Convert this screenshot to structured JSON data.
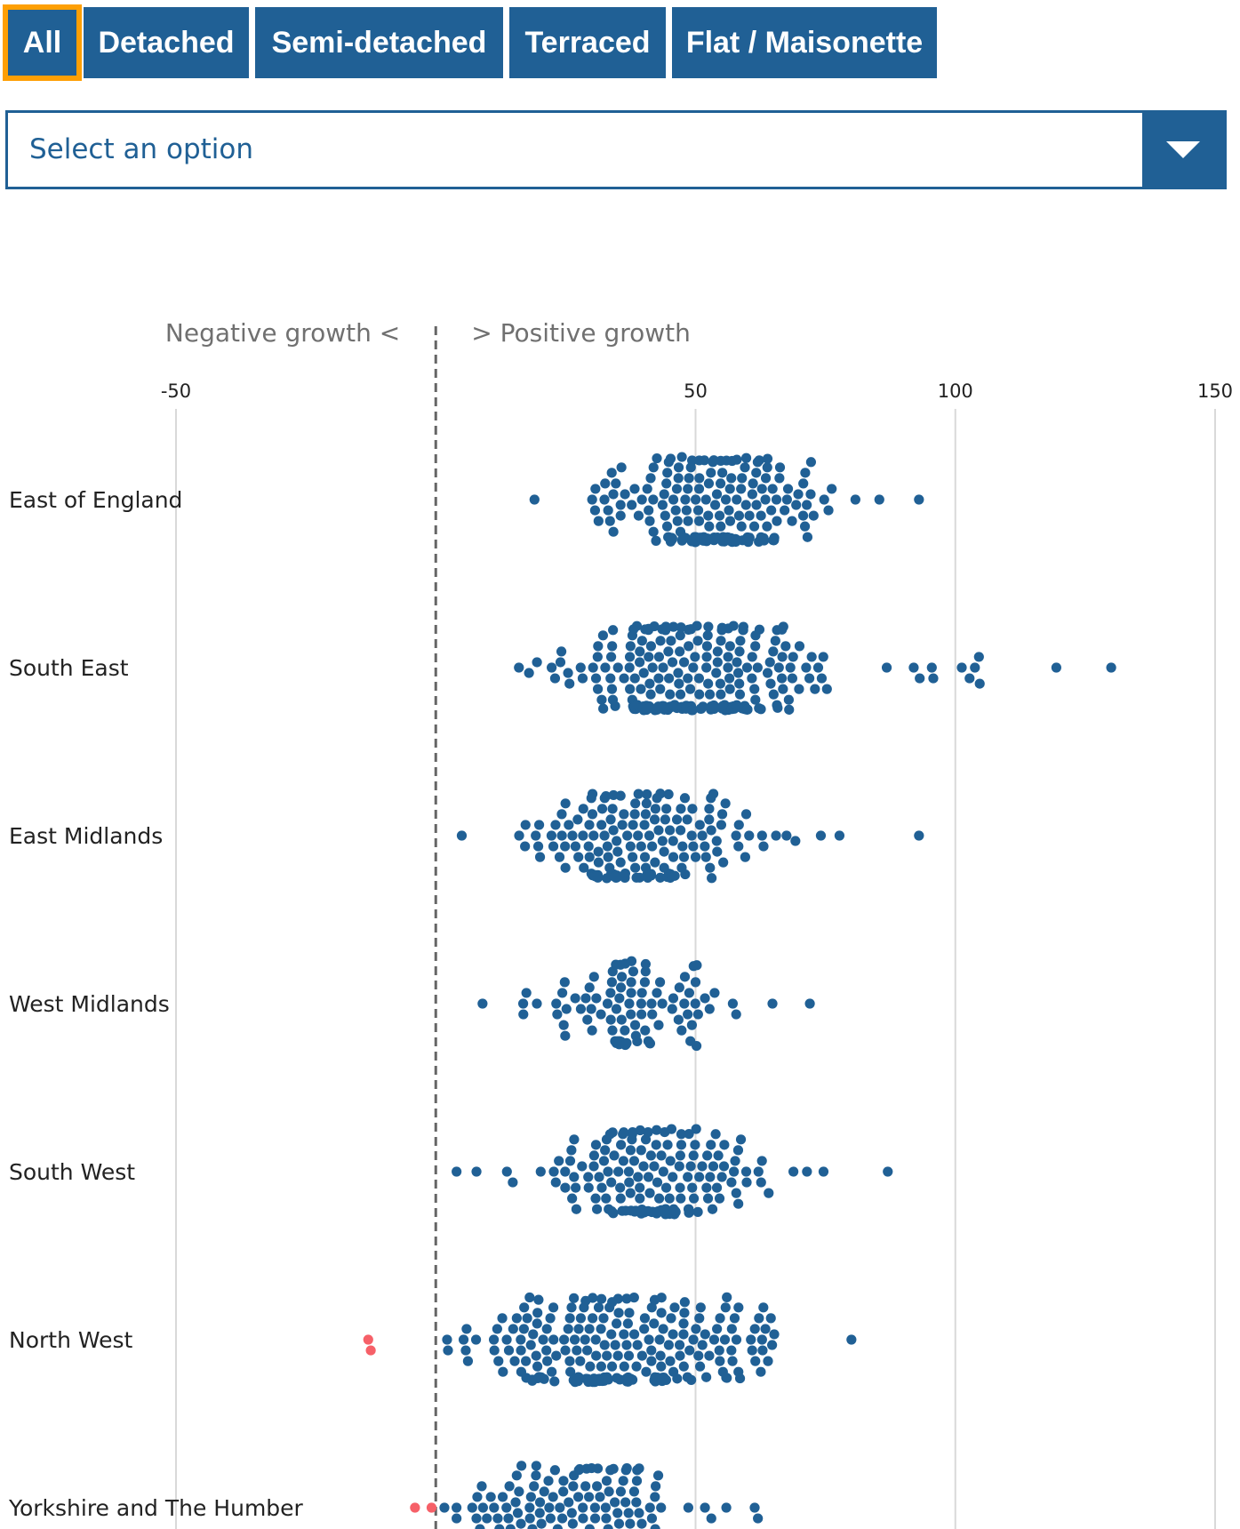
{
  "tabs": [
    {
      "label": "All",
      "selected": true
    },
    {
      "label": "Detached",
      "selected": false
    },
    {
      "label": "Semi-detached",
      "selected": false
    },
    {
      "label": "Terraced",
      "selected": false
    },
    {
      "label": "Flat / Maisonette",
      "selected": false
    }
  ],
  "select": {
    "placeholder": "Select an option",
    "icon": "chevron-down-icon"
  },
  "chart_data": {
    "type": "scatter",
    "subtype": "beeswarm",
    "annotations": {
      "negative": "Negative growth <",
      "positive": "> Positive growth"
    },
    "x_axis": {
      "ticks": [
        -50,
        50,
        100,
        150
      ],
      "range": [
        -50,
        150
      ],
      "reference_line": 0,
      "grid": true
    },
    "colors": {
      "positive": "#206095",
      "negative": "#f66068",
      "grid": "#d9d9d9",
      "reference": "#666666"
    },
    "regions": [
      {
        "name": "East of England",
        "count": 200,
        "spread": [
          19,
          93
        ],
        "core": [
          27,
          80
        ]
      },
      {
        "name": "South East",
        "count": 260,
        "spread": [
          16,
          130
        ],
        "core": [
          22,
          78
        ]
      },
      {
        "name": "East Midlands",
        "count": 160,
        "spread": [
          5,
          93
        ],
        "core": [
          12,
          66
        ]
      },
      {
        "name": "West Midlands",
        "count": 95,
        "spread": [
          9,
          72
        ],
        "core": [
          16,
          58
        ]
      },
      {
        "name": "South West",
        "count": 165,
        "spread": [
          4,
          87
        ],
        "core": [
          13,
          66
        ]
      },
      {
        "name": "North West",
        "count": 220,
        "spread": [
          -13,
          80
        ],
        "core": [
          0,
          72
        ]
      },
      {
        "name": "Yorkshire and The Humber",
        "count": 140,
        "spread": [
          -4,
          62
        ],
        "core": [
          0,
          55
        ]
      }
    ]
  }
}
